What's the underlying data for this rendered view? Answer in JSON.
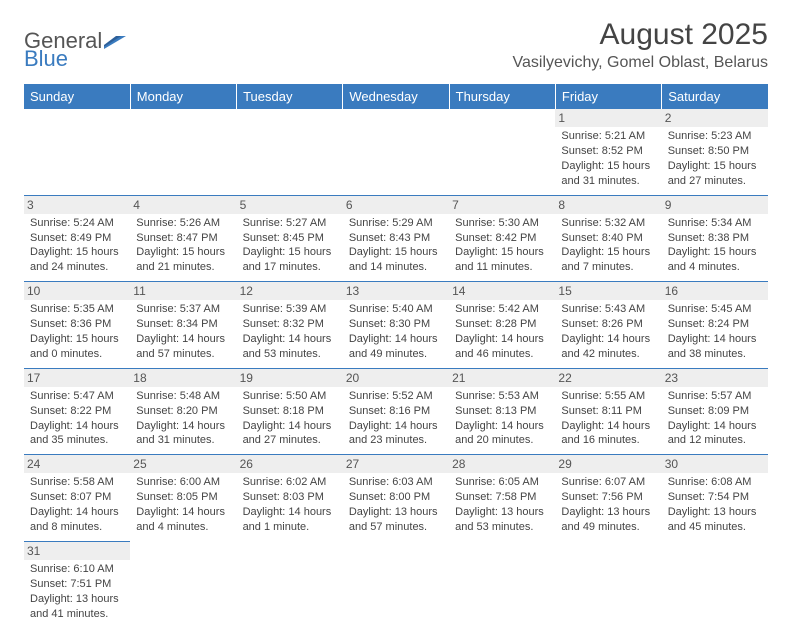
{
  "logo": {
    "text1": "General",
    "text2": "Blue"
  },
  "title": "August 2025",
  "location": "Vasilyevichy, Gomel Oblast, Belarus",
  "colors": {
    "header_bg": "#3a7bbf",
    "header_fg": "#ffffff",
    "border": "#3a7bbf",
    "daynum_bg": "#eeeeee"
  },
  "weekdays": [
    "Sunday",
    "Monday",
    "Tuesday",
    "Wednesday",
    "Thursday",
    "Friday",
    "Saturday"
  ],
  "weeks": [
    [
      {
        "n": "",
        "sr": "",
        "ss": "",
        "dl": ""
      },
      {
        "n": "",
        "sr": "",
        "ss": "",
        "dl": ""
      },
      {
        "n": "",
        "sr": "",
        "ss": "",
        "dl": ""
      },
      {
        "n": "",
        "sr": "",
        "ss": "",
        "dl": ""
      },
      {
        "n": "",
        "sr": "",
        "ss": "",
        "dl": ""
      },
      {
        "n": "1",
        "sr": "Sunrise: 5:21 AM",
        "ss": "Sunset: 8:52 PM",
        "dl": "Daylight: 15 hours and 31 minutes."
      },
      {
        "n": "2",
        "sr": "Sunrise: 5:23 AM",
        "ss": "Sunset: 8:50 PM",
        "dl": "Daylight: 15 hours and 27 minutes."
      }
    ],
    [
      {
        "n": "3",
        "sr": "Sunrise: 5:24 AM",
        "ss": "Sunset: 8:49 PM",
        "dl": "Daylight: 15 hours and 24 minutes."
      },
      {
        "n": "4",
        "sr": "Sunrise: 5:26 AM",
        "ss": "Sunset: 8:47 PM",
        "dl": "Daylight: 15 hours and 21 minutes."
      },
      {
        "n": "5",
        "sr": "Sunrise: 5:27 AM",
        "ss": "Sunset: 8:45 PM",
        "dl": "Daylight: 15 hours and 17 minutes."
      },
      {
        "n": "6",
        "sr": "Sunrise: 5:29 AM",
        "ss": "Sunset: 8:43 PM",
        "dl": "Daylight: 15 hours and 14 minutes."
      },
      {
        "n": "7",
        "sr": "Sunrise: 5:30 AM",
        "ss": "Sunset: 8:42 PM",
        "dl": "Daylight: 15 hours and 11 minutes."
      },
      {
        "n": "8",
        "sr": "Sunrise: 5:32 AM",
        "ss": "Sunset: 8:40 PM",
        "dl": "Daylight: 15 hours and 7 minutes."
      },
      {
        "n": "9",
        "sr": "Sunrise: 5:34 AM",
        "ss": "Sunset: 8:38 PM",
        "dl": "Daylight: 15 hours and 4 minutes."
      }
    ],
    [
      {
        "n": "10",
        "sr": "Sunrise: 5:35 AM",
        "ss": "Sunset: 8:36 PM",
        "dl": "Daylight: 15 hours and 0 minutes."
      },
      {
        "n": "11",
        "sr": "Sunrise: 5:37 AM",
        "ss": "Sunset: 8:34 PM",
        "dl": "Daylight: 14 hours and 57 minutes."
      },
      {
        "n": "12",
        "sr": "Sunrise: 5:39 AM",
        "ss": "Sunset: 8:32 PM",
        "dl": "Daylight: 14 hours and 53 minutes."
      },
      {
        "n": "13",
        "sr": "Sunrise: 5:40 AM",
        "ss": "Sunset: 8:30 PM",
        "dl": "Daylight: 14 hours and 49 minutes."
      },
      {
        "n": "14",
        "sr": "Sunrise: 5:42 AM",
        "ss": "Sunset: 8:28 PM",
        "dl": "Daylight: 14 hours and 46 minutes."
      },
      {
        "n": "15",
        "sr": "Sunrise: 5:43 AM",
        "ss": "Sunset: 8:26 PM",
        "dl": "Daylight: 14 hours and 42 minutes."
      },
      {
        "n": "16",
        "sr": "Sunrise: 5:45 AM",
        "ss": "Sunset: 8:24 PM",
        "dl": "Daylight: 14 hours and 38 minutes."
      }
    ],
    [
      {
        "n": "17",
        "sr": "Sunrise: 5:47 AM",
        "ss": "Sunset: 8:22 PM",
        "dl": "Daylight: 14 hours and 35 minutes."
      },
      {
        "n": "18",
        "sr": "Sunrise: 5:48 AM",
        "ss": "Sunset: 8:20 PM",
        "dl": "Daylight: 14 hours and 31 minutes."
      },
      {
        "n": "19",
        "sr": "Sunrise: 5:50 AM",
        "ss": "Sunset: 8:18 PM",
        "dl": "Daylight: 14 hours and 27 minutes."
      },
      {
        "n": "20",
        "sr": "Sunrise: 5:52 AM",
        "ss": "Sunset: 8:16 PM",
        "dl": "Daylight: 14 hours and 23 minutes."
      },
      {
        "n": "21",
        "sr": "Sunrise: 5:53 AM",
        "ss": "Sunset: 8:13 PM",
        "dl": "Daylight: 14 hours and 20 minutes."
      },
      {
        "n": "22",
        "sr": "Sunrise: 5:55 AM",
        "ss": "Sunset: 8:11 PM",
        "dl": "Daylight: 14 hours and 16 minutes."
      },
      {
        "n": "23",
        "sr": "Sunrise: 5:57 AM",
        "ss": "Sunset: 8:09 PM",
        "dl": "Daylight: 14 hours and 12 minutes."
      }
    ],
    [
      {
        "n": "24",
        "sr": "Sunrise: 5:58 AM",
        "ss": "Sunset: 8:07 PM",
        "dl": "Daylight: 14 hours and 8 minutes."
      },
      {
        "n": "25",
        "sr": "Sunrise: 6:00 AM",
        "ss": "Sunset: 8:05 PM",
        "dl": "Daylight: 14 hours and 4 minutes."
      },
      {
        "n": "26",
        "sr": "Sunrise: 6:02 AM",
        "ss": "Sunset: 8:03 PM",
        "dl": "Daylight: 14 hours and 1 minute."
      },
      {
        "n": "27",
        "sr": "Sunrise: 6:03 AM",
        "ss": "Sunset: 8:00 PM",
        "dl": "Daylight: 13 hours and 57 minutes."
      },
      {
        "n": "28",
        "sr": "Sunrise: 6:05 AM",
        "ss": "Sunset: 7:58 PM",
        "dl": "Daylight: 13 hours and 53 minutes."
      },
      {
        "n": "29",
        "sr": "Sunrise: 6:07 AM",
        "ss": "Sunset: 7:56 PM",
        "dl": "Daylight: 13 hours and 49 minutes."
      },
      {
        "n": "30",
        "sr": "Sunrise: 6:08 AM",
        "ss": "Sunset: 7:54 PM",
        "dl": "Daylight: 13 hours and 45 minutes."
      }
    ],
    [
      {
        "n": "31",
        "sr": "Sunrise: 6:10 AM",
        "ss": "Sunset: 7:51 PM",
        "dl": "Daylight: 13 hours and 41 minutes."
      },
      {
        "n": "",
        "sr": "",
        "ss": "",
        "dl": ""
      },
      {
        "n": "",
        "sr": "",
        "ss": "",
        "dl": ""
      },
      {
        "n": "",
        "sr": "",
        "ss": "",
        "dl": ""
      },
      {
        "n": "",
        "sr": "",
        "ss": "",
        "dl": ""
      },
      {
        "n": "",
        "sr": "",
        "ss": "",
        "dl": ""
      },
      {
        "n": "",
        "sr": "",
        "ss": "",
        "dl": ""
      }
    ]
  ]
}
